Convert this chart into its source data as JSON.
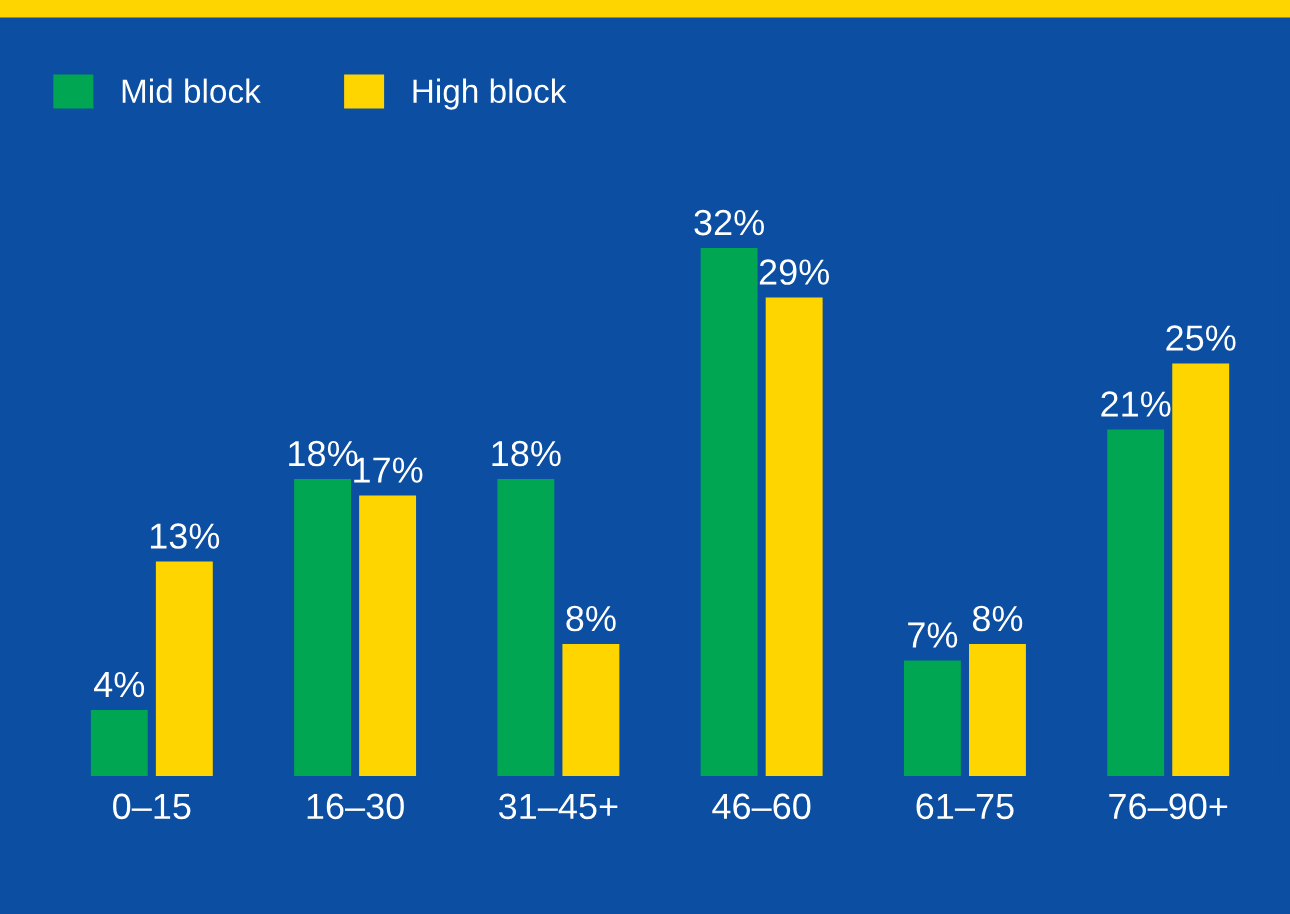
{
  "chart_data": {
    "type": "bar",
    "categories": [
      "0–15",
      "16–30",
      "31–45+",
      "46–60",
      "61–75",
      "76–90+"
    ],
    "series": [
      {
        "name": "Mid block",
        "color": "#00a651",
        "values": [
          4,
          18,
          18,
          32,
          7,
          21
        ],
        "value_labels": [
          "4%",
          "18%",
          "18%",
          "32%",
          "7%",
          "21%"
        ]
      },
      {
        "name": "High block",
        "color": "#ffd500",
        "values": [
          13,
          17,
          8,
          29,
          8,
          25
        ],
        "value_labels": [
          "13%",
          "17%",
          "8%",
          "29%",
          "8%",
          "25%"
        ]
      }
    ],
    "legend": "top left",
    "grid": false
  }
}
